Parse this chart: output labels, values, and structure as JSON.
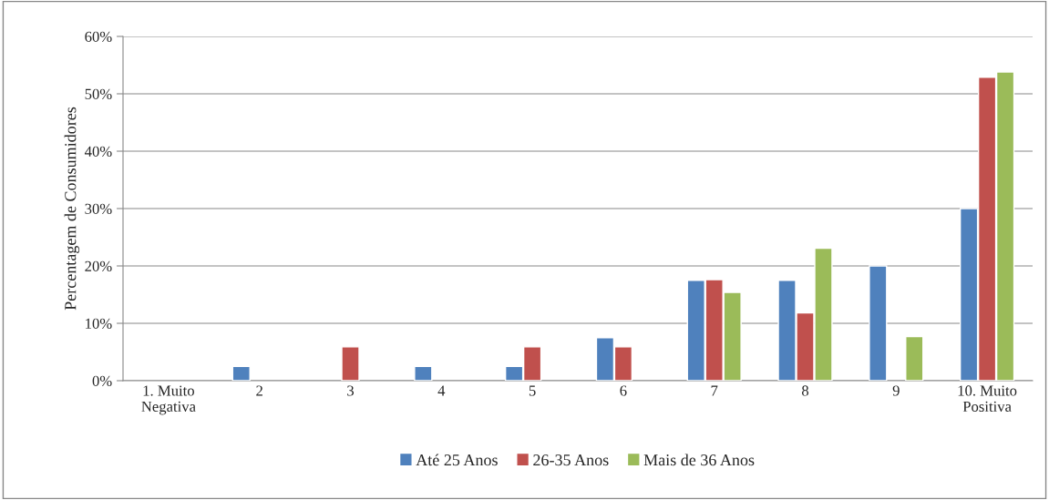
{
  "chart_data": {
    "type": "bar",
    "ylabel": "Percentagem de Consumidores",
    "categories": [
      "1. Muito\nNegativa",
      "2",
      "3",
      "4",
      "5",
      "6",
      "7",
      "8",
      "9",
      "10. Muito\nPositiva"
    ],
    "series": [
      {
        "name": "Até 25 Anos",
        "color": "#4f81bd",
        "values": [
          null,
          2.5,
          null,
          2.5,
          2.5,
          7.5,
          17.5,
          17.5,
          20,
          30
        ]
      },
      {
        "name": "26-35 Anos",
        "color": "#c0504d",
        "values": [
          null,
          null,
          5.9,
          null,
          5.9,
          5.9,
          17.6,
          11.8,
          null,
          52.9
        ]
      },
      {
        "name": "Mais de 36 Anos",
        "color": "#9bbb59",
        "values": [
          null,
          null,
          null,
          null,
          null,
          null,
          15.4,
          23.1,
          7.7,
          53.8
        ]
      }
    ],
    "ylim": [
      0,
      60
    ],
    "yticks": [
      {
        "value": 0,
        "label": "0%"
      },
      {
        "value": 10,
        "label": "10%"
      },
      {
        "value": 20,
        "label": "20%"
      },
      {
        "value": 30,
        "label": "30%"
      },
      {
        "value": 40,
        "label": "40%"
      },
      {
        "value": 50,
        "label": "50%"
      },
      {
        "value": 60,
        "label": "60%"
      }
    ],
    "grid": "y",
    "legend": "bottom"
  }
}
